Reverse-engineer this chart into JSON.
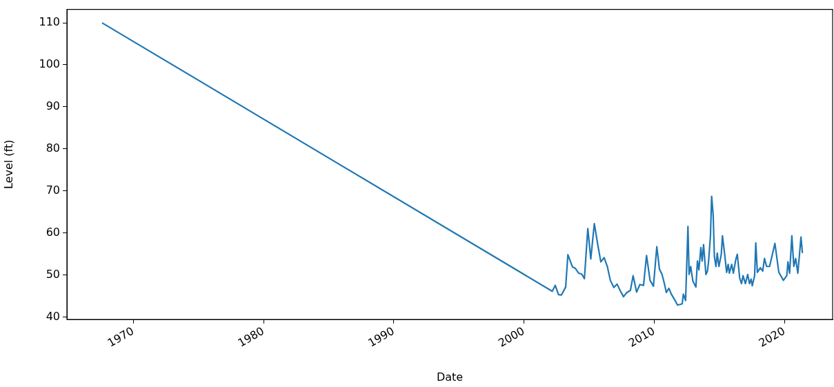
{
  "chart_data": {
    "type": "line",
    "xlabel": "Date",
    "ylabel": "Level (ft)",
    "xlim": [
      1964.9,
      2023.7
    ],
    "ylim": [
      39.4,
      113.2
    ],
    "xticks": [
      1970,
      1980,
      1990,
      2000,
      2010,
      2020
    ],
    "yticks": [
      40,
      50,
      60,
      70,
      80,
      90,
      100,
      110
    ],
    "grid": false,
    "legend": false,
    "marker": "none",
    "line_style": "solid",
    "series": [
      {
        "color": "#1f77b4",
        "x": [
          1967.6,
          2002.17,
          2002.4,
          2002.65,
          2002.87,
          2003.2,
          2003.37,
          2003.72,
          2003.93,
          2004.2,
          2004.43,
          2004.64,
          2004.9,
          2005.13,
          2005.4,
          2005.67,
          2005.9,
          2006.15,
          2006.4,
          2006.63,
          2006.9,
          2007.15,
          2007.38,
          2007.64,
          2007.9,
          2008.17,
          2008.38,
          2008.65,
          2008.9,
          2009.18,
          2009.41,
          2009.68,
          2009.94,
          2010.2,
          2010.4,
          2010.6,
          2010.8,
          2010.93,
          2011.13,
          2011.3,
          2011.6,
          2011.79,
          2012.15,
          2012.24,
          2012.41,
          2012.59,
          2012.68,
          2012.8,
          2012.97,
          2013.2,
          2013.32,
          2013.43,
          2013.58,
          2013.68,
          2013.79,
          2013.97,
          2014.09,
          2014.18,
          2014.32,
          2014.41,
          2014.53,
          2014.62,
          2014.74,
          2014.84,
          2014.97,
          2015.15,
          2015.24,
          2015.41,
          2015.56,
          2015.68,
          2015.77,
          2015.95,
          2016.08,
          2016.26,
          2016.38,
          2016.56,
          2016.7,
          2016.82,
          2017.0,
          2017.18,
          2017.32,
          2017.44,
          2017.53,
          2017.71,
          2017.8,
          2017.92,
          2018.15,
          2018.33,
          2018.47,
          2018.63,
          2018.86,
          2019.27,
          2019.57,
          2019.92,
          2020.18,
          2020.27,
          2020.4,
          2020.57,
          2020.72,
          2020.86,
          2021.03,
          2021.27,
          2021.38
        ],
        "values": [
          110,
          46.1,
          47.5,
          45.3,
          45.2,
          47.1,
          54.8,
          51.9,
          51.6,
          50.4,
          50.2,
          49.1,
          61.0,
          53.8,
          62.2,
          57.1,
          53.1,
          54.1,
          52.0,
          48.7,
          47.0,
          47.8,
          46.3,
          44.8,
          45.8,
          46.3,
          49.8,
          45.9,
          47.7,
          47.5,
          54.6,
          48.7,
          47.3,
          56.7,
          51.4,
          50.1,
          47.7,
          45.8,
          46.8,
          45.5,
          43.9,
          42.8,
          43.1,
          45.4,
          43.9,
          61.5,
          50.1,
          52.0,
          48.5,
          47.1,
          53.3,
          51.2,
          56.5,
          53.3,
          57.2,
          50.1,
          50.9,
          53.4,
          59.3,
          68.7,
          64.1,
          54.4,
          52.0,
          55.2,
          52.0,
          54.9,
          59.3,
          54.9,
          50.6,
          52.5,
          50.4,
          52.5,
          50.4,
          53.6,
          54.9,
          49.3,
          47.9,
          49.8,
          47.9,
          50.1,
          47.9,
          49.0,
          47.4,
          49.8,
          57.6,
          50.6,
          51.7,
          50.9,
          53.9,
          52.0,
          52.0,
          57.5,
          50.6,
          48.7,
          49.8,
          53.1,
          50.4,
          59.3,
          52.0,
          53.9,
          50.4,
          59.0,
          55.2
        ]
      }
    ]
  }
}
